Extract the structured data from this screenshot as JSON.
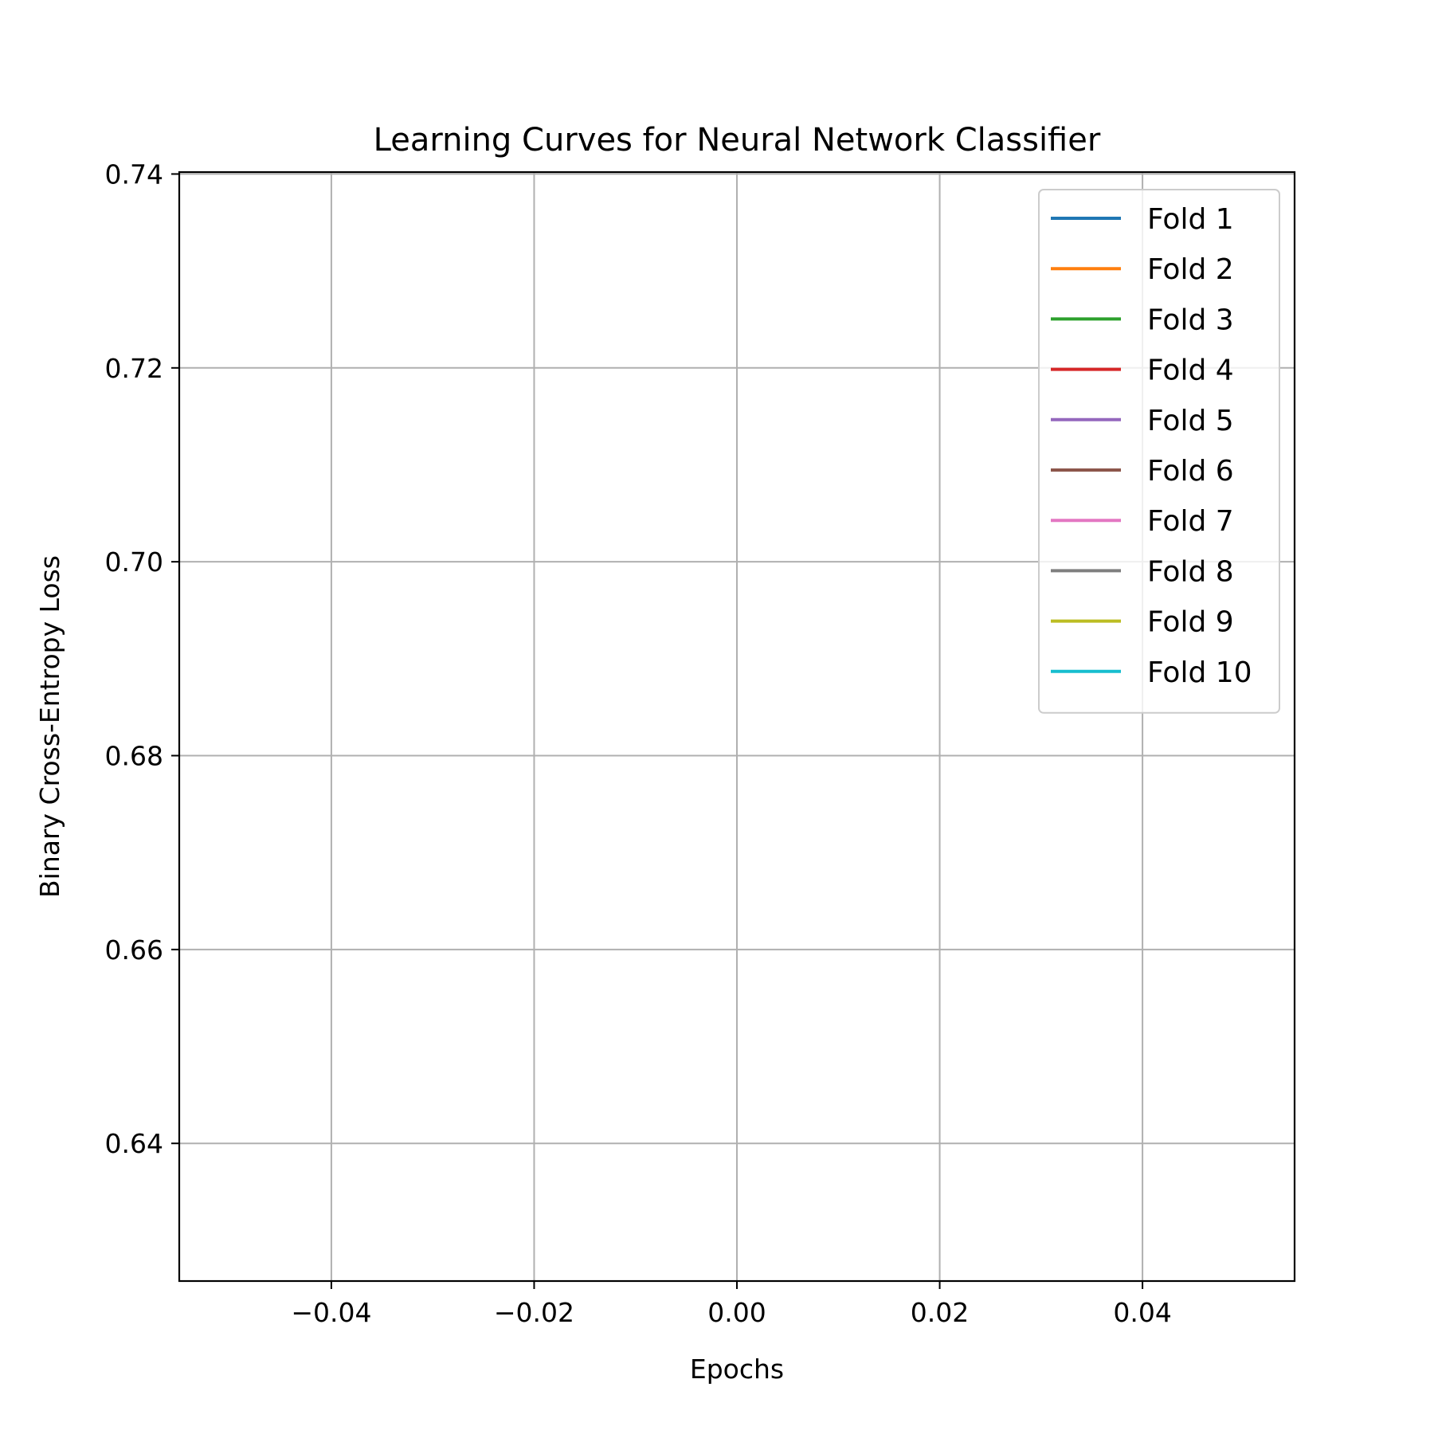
{
  "chart_data": {
    "type": "line",
    "title": "Learning Curves for Neural Network Classifier",
    "xlabel": "Epochs",
    "ylabel": "Binary Cross-Entropy Loss",
    "xlim": [
      -0.055,
      0.055
    ],
    "ylim": [
      0.6258,
      0.7402
    ],
    "xticks": [
      -0.04,
      -0.02,
      0.0,
      0.02,
      0.04
    ],
    "xtick_labels": [
      "−0.04",
      "−0.02",
      "0.00",
      "0.02",
      "0.04"
    ],
    "yticks": [
      0.64,
      0.66,
      0.68,
      0.7,
      0.72,
      0.74
    ],
    "ytick_labels": [
      "0.64",
      "0.66",
      "0.68",
      "0.70",
      "0.72",
      "0.74"
    ],
    "grid": true,
    "legend_position": "top-right",
    "series": [
      {
        "name": "Fold 1",
        "color": "#1f77b4",
        "x": [],
        "y": []
      },
      {
        "name": "Fold 2",
        "color": "#ff7f0e",
        "x": [],
        "y": []
      },
      {
        "name": "Fold 3",
        "color": "#2ca02c",
        "x": [],
        "y": []
      },
      {
        "name": "Fold 4",
        "color": "#d62728",
        "x": [],
        "y": []
      },
      {
        "name": "Fold 5",
        "color": "#9467bd",
        "x": [],
        "y": []
      },
      {
        "name": "Fold 6",
        "color": "#8c564b",
        "x": [],
        "y": []
      },
      {
        "name": "Fold 7",
        "color": "#e377c2",
        "x": [],
        "y": []
      },
      {
        "name": "Fold 8",
        "color": "#7f7f7f",
        "x": [],
        "y": []
      },
      {
        "name": "Fold 9",
        "color": "#bcbd22",
        "x": [],
        "y": []
      },
      {
        "name": "Fold 10",
        "color": "#17becf",
        "x": [],
        "y": []
      }
    ]
  }
}
